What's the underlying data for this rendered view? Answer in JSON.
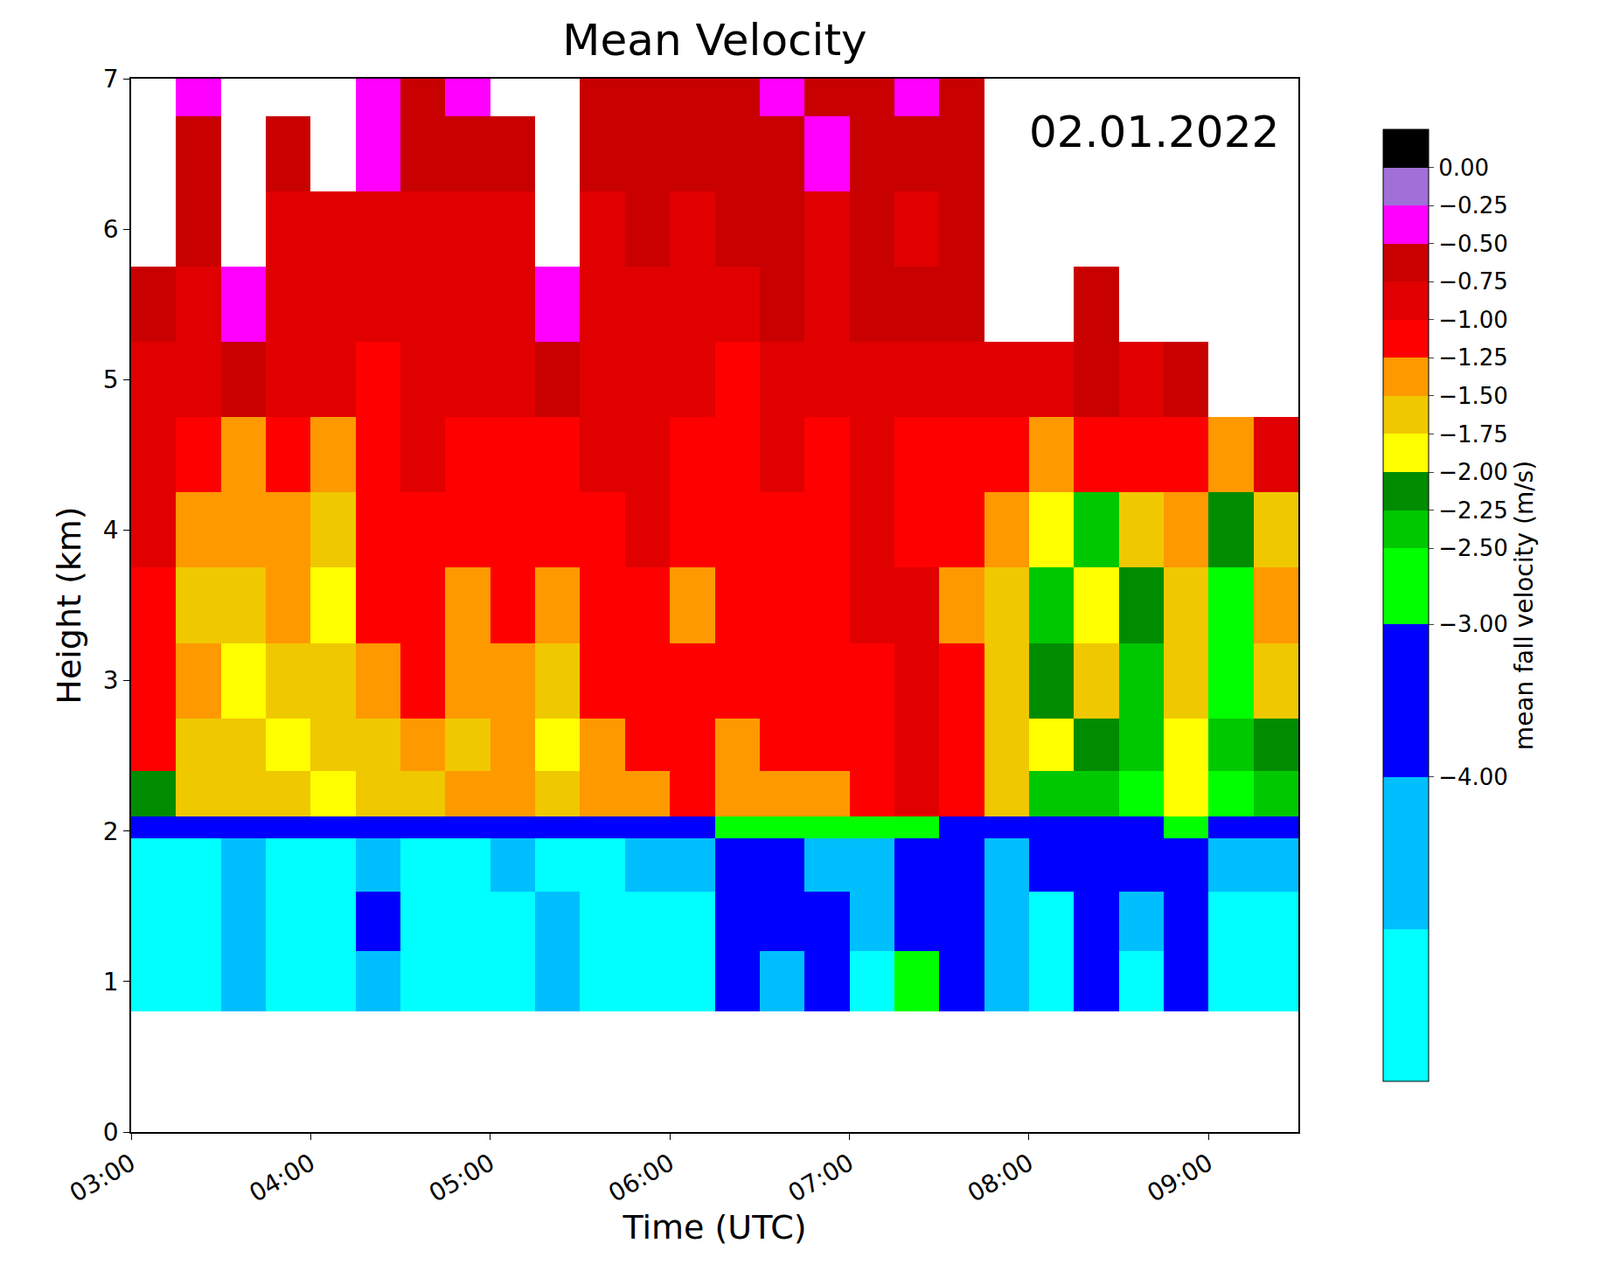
{
  "chart_data": {
    "type": "heatmap",
    "title": "Mean Velocity",
    "x_label": "Time (UTC)",
    "y_label": "Height (km)",
    "annotation": "02.01.2022",
    "grid": false,
    "x": [
      "2022-01-02 03:00",
      "2022-01-02 03:15",
      "2022-01-02 03:30",
      "2022-01-02 03:45",
      "2022-01-02 04:00",
      "2022-01-02 04:15",
      "2022-01-02 04:30",
      "2022-01-02 04:45",
      "2022-01-02 05:00",
      "2022-01-02 05:15",
      "2022-01-02 05:30",
      "2022-01-02 05:45",
      "2022-01-02 06:00",
      "2022-01-02 06:15",
      "2022-01-02 06:30",
      "2022-01-02 06:45",
      "2022-01-02 07:00",
      "2022-01-02 07:15",
      "2022-01-02 07:30",
      "2022-01-02 07:45",
      "2022-01-02 08:00",
      "2022-01-02 08:15",
      "2022-01-02 08:30",
      "2022-01-02 08:45",
      "2022-01-02 09:00",
      "2022-01-02 09:15",
      "2022-01-02 09:30"
    ],
    "y": [
      0.8,
      1.2,
      1.6,
      1.95,
      2.1,
      2.4,
      2.75,
      3.25,
      3.75,
      4.25,
      4.75,
      5.25,
      5.75,
      6.25,
      6.75,
      7.0
    ],
    "z": [
      [
        -5.5,
        -5.5,
        -4.5,
        -5.5,
        -5.5,
        -4.5,
        -5.5,
        -5.5,
        -5.5,
        -4.5,
        -5.5,
        -5.5,
        -5.5,
        -3.5,
        -4.5,
        -3.5,
        -5.5,
        -2.7,
        -3.5,
        -4.5,
        -5.5,
        -3.5,
        -5.5,
        -3.5,
        -5.5,
        -5.5
      ],
      [
        -5.5,
        -5.5,
        -4.5,
        -5.5,
        -5.5,
        -3.5,
        -5.5,
        -5.5,
        -5.5,
        -4.5,
        -5.5,
        -5.5,
        -5.5,
        -3.5,
        -3.5,
        -3.5,
        -4.5,
        -3.5,
        -3.5,
        -4.5,
        -5.5,
        -3.5,
        -4.5,
        -3.5,
        -5.5,
        -5.5
      ],
      [
        -5.5,
        -5.5,
        -4.5,
        -5.5,
        -5.5,
        -4.5,
        -5.5,
        -5.5,
        -4.5,
        -5.5,
        -5.5,
        -4.5,
        -4.5,
        -3.5,
        -3.5,
        -4.5,
        -4.5,
        -3.5,
        -3.5,
        -4.5,
        -3.5,
        -3.5,
        -3.5,
        -3.5,
        -4.5,
        -4.5
      ],
      [
        -3.5,
        -3.5,
        -3.5,
        -3.5,
        -3.5,
        -3.5,
        -3.5,
        -3.5,
        -3.5,
        -3.5,
        -3.5,
        -3.5,
        -3.5,
        -2.6,
        -2.6,
        -2.6,
        -2.6,
        -2.6,
        -3.5,
        -3.5,
        -3.5,
        -3.5,
        -3.5,
        -2.6,
        -3.5,
        -3.5
      ],
      [
        -2.1,
        -1.6,
        -1.6,
        -1.6,
        -1.9,
        -1.6,
        -1.6,
        -1.4,
        -1.4,
        -1.6,
        -1.4,
        -1.4,
        -1.1,
        -1.4,
        -1.4,
        -1.4,
        -1.1,
        -0.9,
        -1.1,
        -1.6,
        -2.3,
        -2.3,
        -2.6,
        -1.9,
        -2.6,
        -2.3
      ],
      [
        -1.1,
        -1.6,
        -1.6,
        -1.9,
        -1.6,
        -1.6,
        -1.4,
        -1.6,
        -1.4,
        -1.9,
        -1.4,
        -1.1,
        -1.1,
        -1.4,
        -1.1,
        -1.1,
        -1.1,
        -0.9,
        -1.1,
        -1.6,
        -1.9,
        -2.1,
        -2.3,
        -1.9,
        -2.3,
        -2.1
      ],
      [
        -1.1,
        -1.4,
        -1.9,
        -1.6,
        -1.6,
        -1.4,
        -1.1,
        -1.4,
        -1.4,
        -1.6,
        -1.1,
        -1.1,
        -1.1,
        -1.1,
        -1.1,
        -1.1,
        -1.1,
        -0.9,
        -1.1,
        -1.6,
        -2.1,
        -1.6,
        -2.3,
        -1.6,
        -2.6,
        -1.6
      ],
      [
        -1.1,
        -1.6,
        -1.6,
        -1.4,
        -1.9,
        -1.1,
        -1.1,
        -1.4,
        -1.1,
        -1.4,
        -1.1,
        -1.1,
        -1.4,
        -1.1,
        -1.1,
        -1.1,
        -0.9,
        -0.9,
        -1.4,
        -1.6,
        -2.3,
        -1.9,
        -2.1,
        -1.6,
        -2.6,
        -1.4
      ],
      [
        -0.9,
        -1.4,
        -1.4,
        -1.4,
        -1.6,
        -1.1,
        -1.1,
        -1.1,
        -1.1,
        -1.1,
        -1.1,
        -0.9,
        -1.1,
        -1.1,
        -1.1,
        -1.1,
        -0.9,
        -1.1,
        -1.1,
        -1.4,
        -1.9,
        -2.3,
        -1.6,
        -1.4,
        -2.1,
        -1.6
      ],
      [
        -0.9,
        -1.1,
        -1.4,
        -1.1,
        -1.4,
        -1.1,
        -0.9,
        -1.1,
        -1.1,
        -1.1,
        -0.9,
        -0.9,
        -1.1,
        -1.1,
        -0.9,
        -1.1,
        -0.9,
        -1.1,
        -1.1,
        -1.1,
        -1.4,
        -1.1,
        -1.1,
        -1.1,
        -1.4,
        -0.9
      ],
      [
        -0.9,
        -0.9,
        -0.6,
        -0.9,
        -0.9,
        -1.1,
        -0.9,
        -0.9,
        -0.9,
        -0.6,
        -0.9,
        -0.9,
        -0.9,
        -1.1,
        -0.9,
        -0.9,
        -0.9,
        -0.9,
        -0.9,
        -0.9,
        -0.9,
        -0.6,
        -0.9,
        -0.6,
        null,
        null
      ],
      [
        -0.6,
        -0.9,
        -0.4,
        -0.9,
        -0.9,
        -0.9,
        -0.9,
        -0.9,
        -0.9,
        -0.4,
        -0.9,
        -0.9,
        -0.9,
        -0.9,
        -0.6,
        -0.9,
        -0.6,
        -0.6,
        -0.6,
        null,
        null,
        -0.6,
        null,
        null,
        null,
        null
      ],
      [
        null,
        -0.6,
        null,
        -0.9,
        -0.9,
        -0.9,
        -0.9,
        -0.9,
        -0.9,
        null,
        -0.9,
        -0.6,
        -0.9,
        -0.6,
        -0.6,
        -0.9,
        -0.6,
        -0.9,
        -0.6,
        null,
        null,
        null,
        null,
        null,
        null,
        null
      ],
      [
        null,
        -0.6,
        null,
        -0.6,
        null,
        -0.4,
        -0.6,
        -0.6,
        -0.6,
        null,
        -0.6,
        -0.6,
        -0.6,
        -0.6,
        -0.6,
        -0.4,
        -0.6,
        -0.6,
        -0.6,
        null,
        null,
        null,
        null,
        null,
        null,
        null
      ],
      [
        null,
        -0.4,
        null,
        null,
        null,
        -0.4,
        -0.6,
        -0.4,
        null,
        null,
        -0.6,
        -0.6,
        -0.6,
        -0.6,
        -0.4,
        -0.6,
        -0.6,
        -0.4,
        -0.6,
        null,
        null,
        null,
        null,
        null,
        null,
        null
      ]
    ],
    "xlim": [
      "2022-01-02 03:00",
      "2022-01-02 09:30"
    ],
    "xticks": [
      {
        "value": "2022-01-02 03:00",
        "label": "03:00"
      },
      {
        "value": "2022-01-02 04:00",
        "label": "04:00"
      },
      {
        "value": "2022-01-02 05:00",
        "label": "05:00"
      },
      {
        "value": "2022-01-02 06:00",
        "label": "06:00"
      },
      {
        "value": "2022-01-02 07:00",
        "label": "07:00"
      },
      {
        "value": "2022-01-02 08:00",
        "label": "08:00"
      },
      {
        "value": "2022-01-02 09:00",
        "label": "09:00"
      }
    ],
    "ylim": [
      0,
      7
    ],
    "yticks": [
      0,
      1,
      2,
      3,
      4,
      5,
      6,
      7
    ],
    "colorbar": {
      "title": "mean fall velocity (m/s)",
      "range": [
        -6,
        0.25
      ],
      "levels": [
        -5,
        -4,
        -3,
        -2.5,
        -2.25,
        -2,
        -1.75,
        -1.5,
        -1.25,
        -1,
        -0.75,
        -0.5,
        -0.25,
        0
      ],
      "colors": [
        "#00ffff",
        "#00bfff",
        "#0000ff",
        "#00ff00",
        "#00c800",
        "#008c00",
        "#ffff00",
        "#f0c800",
        "#ff9900",
        "#ff0000",
        "#e00000",
        "#c80000",
        "#ff00ff",
        "#a070d8",
        "#000000"
      ],
      "ticks": [
        {
          "value": 0,
          "label": "0.00"
        },
        {
          "value": -0.25,
          "label": "−0.25"
        },
        {
          "value": -0.5,
          "label": "−0.50"
        },
        {
          "value": -0.75,
          "label": "−0.75"
        },
        {
          "value": -1,
          "label": "−1.00"
        },
        {
          "value": -1.25,
          "label": "−1.25"
        },
        {
          "value": -1.5,
          "label": "−1.50"
        },
        {
          "value": -1.75,
          "label": "−1.75"
        },
        {
          "value": -2,
          "label": "−2.00"
        },
        {
          "value": -2.25,
          "label": "−2.25"
        },
        {
          "value": -2.5,
          "label": "−2.50"
        },
        {
          "value": -3,
          "label": "−3.00"
        },
        {
          "value": -4,
          "label": "−4.00"
        }
      ]
    }
  }
}
